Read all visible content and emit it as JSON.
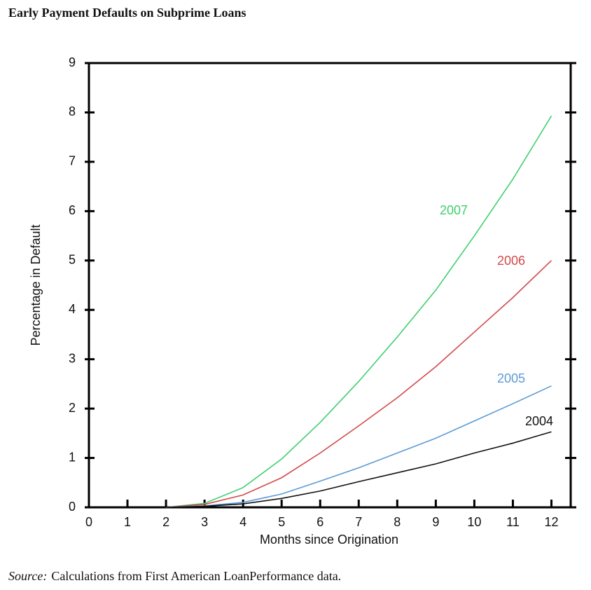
{
  "chart_data": {
    "type": "line",
    "title": "Early Payment Defaults on Subprime Loans",
    "x_label": "Months since Origination",
    "y_label": "Percentage in Default",
    "x": [
      2,
      3,
      4,
      5,
      6,
      7,
      8,
      9,
      10,
      11,
      12
    ],
    "series": [
      {
        "name": "2007",
        "color": "#3ecf6e",
        "values": [
          0,
          0.08,
          0.4,
          0.98,
          1.72,
          2.55,
          3.45,
          4.4,
          5.5,
          6.65,
          7.93
        ]
      },
      {
        "name": "2006",
        "color": "#d24a4a",
        "values": [
          0,
          0.06,
          0.25,
          0.6,
          1.1,
          1.65,
          2.22,
          2.85,
          3.55,
          4.25,
          5.0
        ]
      },
      {
        "name": "2005",
        "color": "#5b9bd5",
        "values": [
          0,
          0.03,
          0.1,
          0.27,
          0.53,
          0.8,
          1.1,
          1.4,
          1.75,
          2.1,
          2.46
        ]
      },
      {
        "name": "2004",
        "color": "#111111",
        "values": [
          0,
          0.02,
          0.07,
          0.18,
          0.33,
          0.52,
          0.7,
          0.88,
          1.1,
          1.3,
          1.53
        ]
      }
    ],
    "xlim": [
      0,
      12.5
    ],
    "ylim": [
      0,
      9
    ],
    "xticks": [
      0,
      1,
      2,
      3,
      4,
      5,
      6,
      7,
      8,
      9,
      10,
      11,
      12
    ],
    "yticks": [
      0,
      1,
      2,
      3,
      4,
      5,
      6,
      7,
      8,
      9
    ],
    "source_label": "Source:",
    "source": "Calculations from First American LoanPerformance data."
  }
}
